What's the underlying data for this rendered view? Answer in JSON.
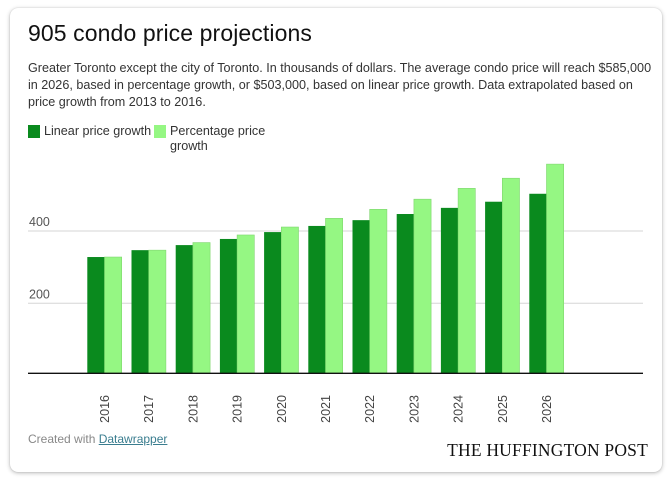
{
  "title": "905 condo price projections",
  "description": "Greater Toronto except the city of Toronto. In thousands of dollars. The average condo price will reach $585,000 in 2026, based in percentage growth, or $503,000, based on linear price growth. Data extrapolated based on price growth from 2013 to 2016.",
  "credit": {
    "prefix": "Created with ",
    "link_label": "Datawrapper"
  },
  "logo": "THE HUFFINGTON POST",
  "colors": {
    "linear": "#0a8a1e",
    "percentage": "#95f783",
    "grid": "#d6d6d6",
    "baseline": "#111111"
  },
  "chart_data": {
    "type": "bar",
    "title": "905 condo price projections",
    "xlabel": "",
    "ylabel": "",
    "units": "thousands of dollars",
    "categories": [
      "2016",
      "2017",
      "2018",
      "2019",
      "2020",
      "2021",
      "2022",
      "2023",
      "2024",
      "2025",
      "2026"
    ],
    "series": [
      {
        "name": "Linear price growth",
        "color": "#0a8a1e",
        "values": [
          328,
          347,
          361,
          378,
          397,
          414,
          430,
          447,
          464,
          481,
          503
        ]
      },
      {
        "name": "Percentage price growth",
        "color": "#95f783",
        "values": [
          328,
          347,
          368,
          389,
          411,
          435,
          460,
          488,
          518,
          546,
          585
        ]
      }
    ],
    "yticks": [
      200,
      400
    ],
    "ytick_labels": [
      "200",
      "400"
    ],
    "ylim": [
      0,
      600
    ],
    "grid": true,
    "legend_position": "top-left",
    "x_tick_rotation": "vertical"
  }
}
